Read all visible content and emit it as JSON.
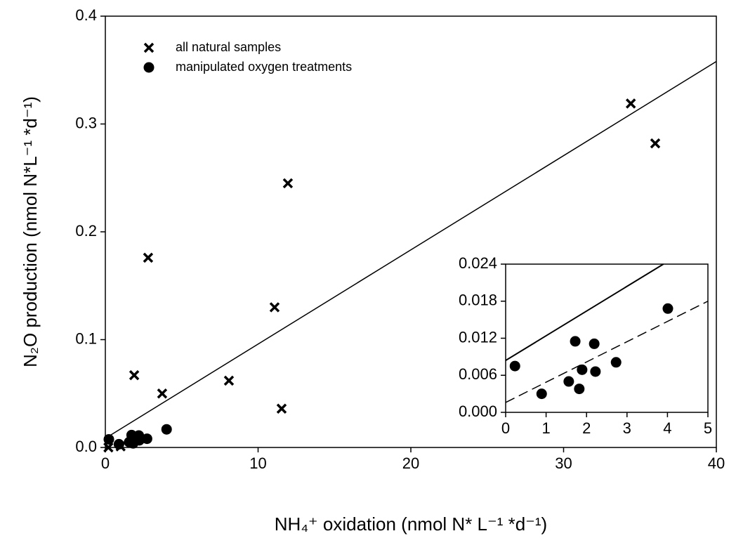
{
  "chart_data": [
    {
      "type": "scatter",
      "xlabel": "NH₄⁺ oxidation (nmol N* L⁻¹ *d⁻¹)",
      "ylabel": "N₂O production (nmol N*L⁻¹ *d⁻¹)",
      "xlim": [
        0,
        40
      ],
      "ylim": [
        0,
        0.4
      ],
      "xticks": [
        0,
        10,
        20,
        30,
        40
      ],
      "yticks": [
        {
          "value": 0,
          "label": "0.0"
        },
        0.1,
        0.2,
        0.3,
        0.4
      ],
      "legend": "upper left",
      "series": [
        {
          "name": "all natural samples",
          "marker": "x",
          "color": "#000000",
          "x": [
            34.4,
            36.0,
            11.95,
            2.8,
            11.08,
            1.89,
            3.72,
            8.09,
            11.54,
            0.2,
            1.0
          ],
          "values": [
            0.319,
            0.282,
            0.245,
            0.176,
            0.13,
            0.067,
            0.05,
            0.062,
            0.036,
            0.0,
            0.001
          ]
        },
        {
          "name": "manipulated oxygen treatments",
          "marker": "circle",
          "color": "#000000",
          "x": [
            0.23,
            0.89,
            1.56,
            1.72,
            1.82,
            1.89,
            2.19,
            2.22,
            2.73,
            4.01
          ],
          "values": [
            0.0075,
            0.003,
            0.005,
            0.0115,
            0.0038,
            0.0069,
            0.0111,
            0.0066,
            0.0081,
            0.0168
          ]
        },
        {
          "marker": "line",
          "style": "solid",
          "color": "#000000",
          "x": [
            0,
            40
          ],
          "values": [
            0.0085,
            0.358
          ]
        }
      ]
    },
    {
      "type": "scatter",
      "xlim": [
        0,
        5
      ],
      "ylim": [
        0,
        0.024
      ],
      "xticks": [
        0,
        1,
        2,
        3,
        4,
        5
      ],
      "yticks": [
        {
          "value": 0,
          "label": "0.000"
        },
        {
          "value": 0.006,
          "label": "0.006"
        },
        {
          "value": 0.012,
          "label": "0.012"
        },
        {
          "value": 0.018,
          "label": "0.018"
        },
        {
          "value": 0.024,
          "label": "0.024"
        }
      ],
      "series": [
        {
          "marker": "circle",
          "color": "#000000",
          "x": [
            0.23,
            0.89,
            1.56,
            1.72,
            1.82,
            1.89,
            2.19,
            2.22,
            2.73,
            4.01
          ],
          "values": [
            0.0075,
            0.003,
            0.005,
            0.0115,
            0.0038,
            0.0069,
            0.0111,
            0.0066,
            0.0081,
            0.0168
          ]
        },
        {
          "marker": "line",
          "style": "solid",
          "color": "#000000",
          "x": [
            0,
            3.9
          ],
          "values": [
            0.0084,
            0.024
          ]
        },
        {
          "marker": "line",
          "style": "dashed",
          "color": "#000000",
          "x": [
            0,
            5
          ],
          "values": [
            0.0016,
            0.018
          ]
        }
      ]
    }
  ]
}
